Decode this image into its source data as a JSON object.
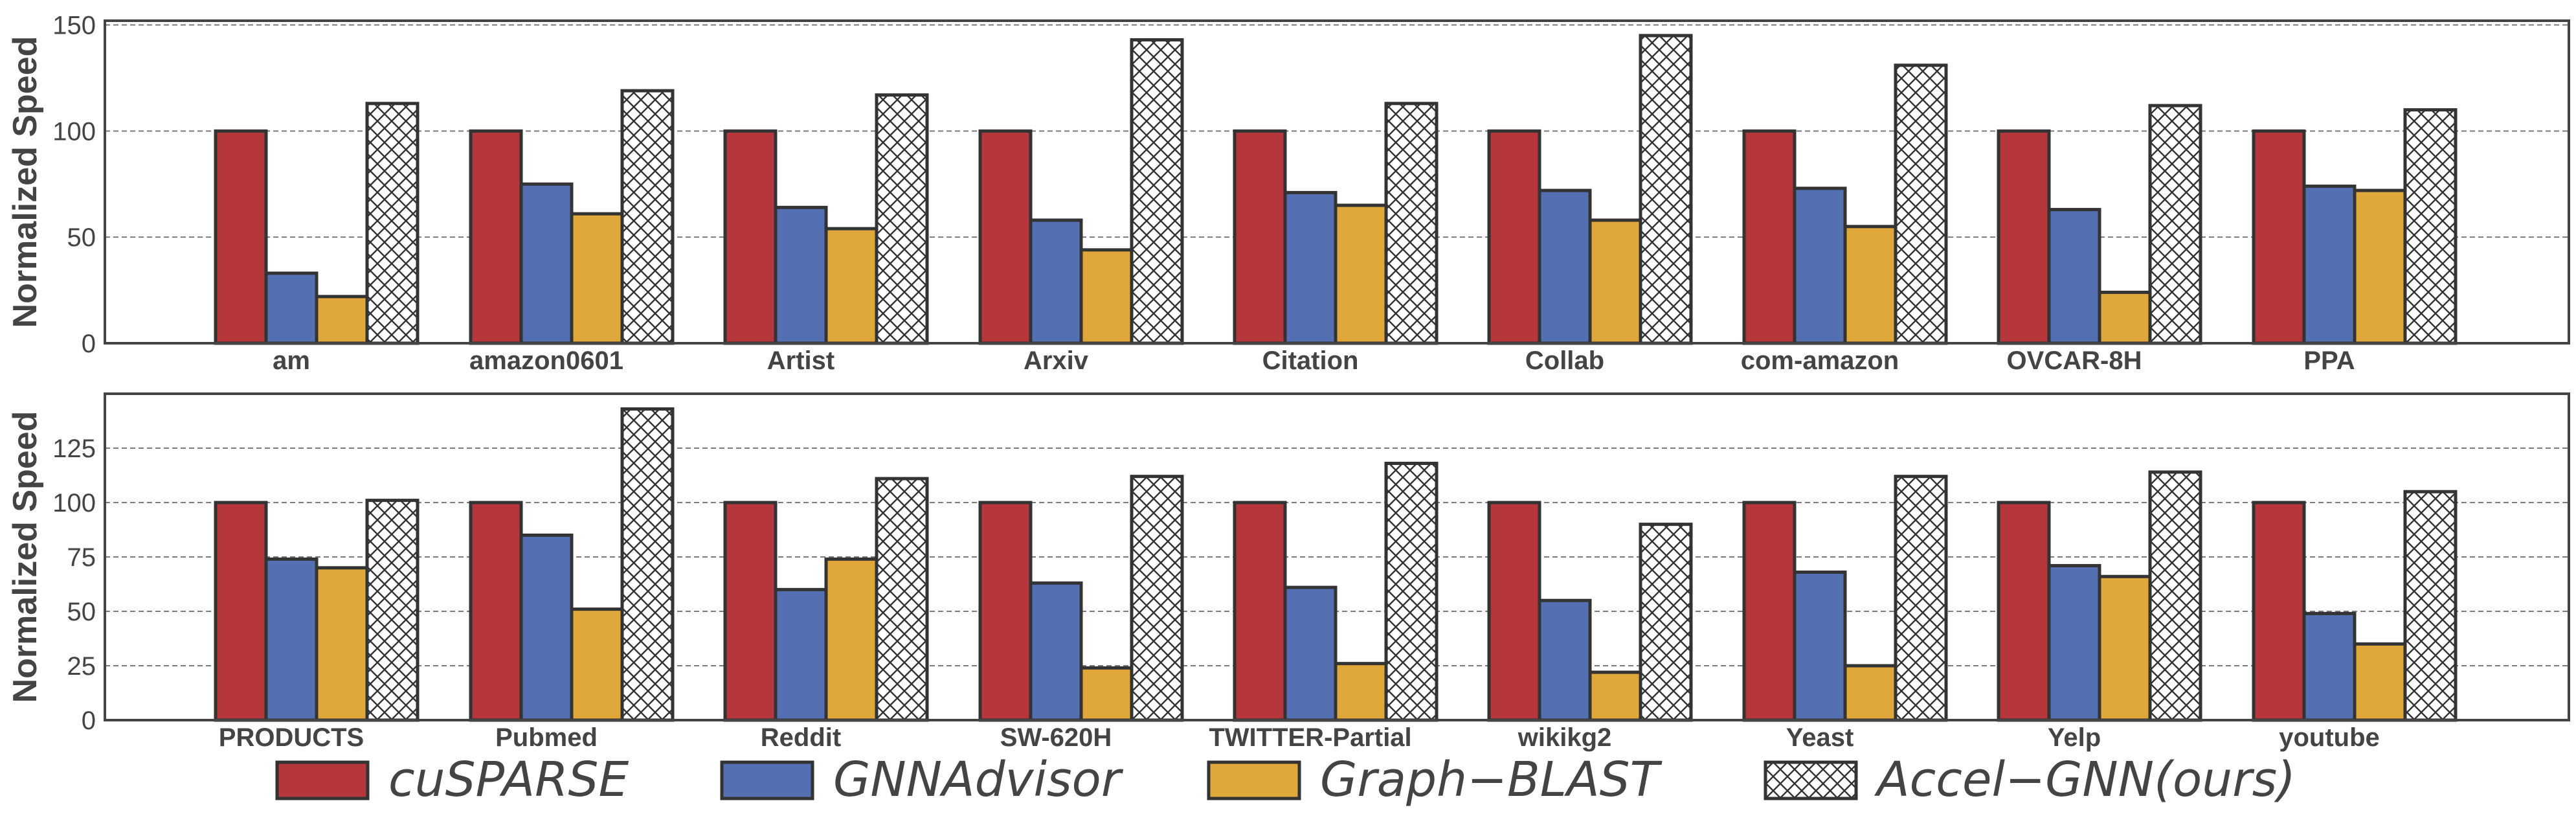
{
  "colors": {
    "cuSPARSE": "#b5363b",
    "GNNAdvisor": "#5470b3",
    "Graph-BLAST": "#e0a83a",
    "Accel-GNN": "#ffffff",
    "edge": "#333333",
    "grid": "#7a7a7a",
    "text": "#444444"
  },
  "legend": {
    "placement": "bottom",
    "entries": [
      "cuSPARSE",
      "GNNAdvisor",
      "Graph−BLAST",
      "Accel−GNN(ours)"
    ]
  },
  "chart_data": [
    {
      "type": "bar",
      "ylabel": "Normalized Speed",
      "ylim": [
        0,
        152
      ],
      "yticks": [
        0,
        50,
        100,
        150
      ],
      "grid": "horizontal-dashed",
      "categories": [
        "am",
        "amazon0601",
        "Artist",
        "Arxiv",
        "Citation",
        "Collab",
        "com-amazon",
        "OVCAR-8H",
        "PPA"
      ],
      "series": [
        {
          "name": "cuSPARSE",
          "values": [
            100,
            100,
            100,
            100,
            100,
            100,
            100,
            100,
            100
          ]
        },
        {
          "name": "GNNAdvisor",
          "values": [
            33,
            75,
            64,
            58,
            71,
            72,
            73,
            63,
            74
          ]
        },
        {
          "name": "Graph−BLAST",
          "values": [
            22,
            61,
            54,
            44,
            65,
            58,
            55,
            24,
            72
          ]
        },
        {
          "name": "Accel−GNN(ours)",
          "values": [
            113,
            119,
            117,
            143,
            113,
            145,
            131,
            112,
            110
          ]
        }
      ]
    },
    {
      "type": "bar",
      "ylabel": "Normalized Speed",
      "ylim": [
        0,
        150
      ],
      "yticks": [
        0,
        25,
        50,
        75,
        100,
        125
      ],
      "grid": "horizontal-dashed",
      "categories": [
        "PRODUCTS",
        "Pubmed",
        "Reddit",
        "SW-620H",
        "TWITTER-Partial",
        "wikikg2",
        "Yeast",
        "Yelp",
        "youtube"
      ],
      "series": [
        {
          "name": "cuSPARSE",
          "values": [
            100,
            100,
            100,
            100,
            100,
            100,
            100,
            100,
            100
          ]
        },
        {
          "name": "GNNAdvisor",
          "values": [
            74,
            85,
            60,
            63,
            61,
            55,
            68,
            71,
            49
          ]
        },
        {
          "name": "Graph−BLAST",
          "values": [
            70,
            51,
            74,
            24,
            26,
            22,
            25,
            66,
            35
          ]
        },
        {
          "name": "Accel−GNN(ours)",
          "values": [
            101,
            143,
            111,
            112,
            118,
            90,
            112,
            114,
            105
          ]
        }
      ]
    }
  ]
}
